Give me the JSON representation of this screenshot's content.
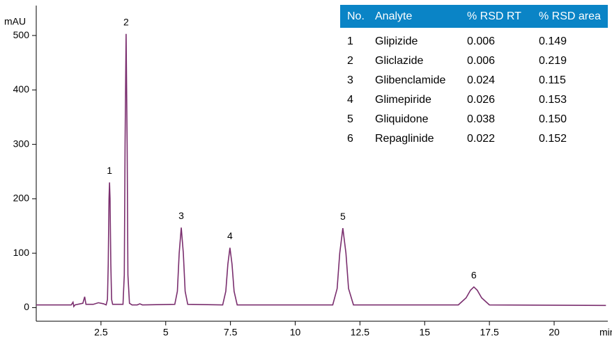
{
  "chart_data": {
    "type": "line",
    "y_label": "mAU",
    "x_label": "min",
    "x": [
      0,
      1.35,
      1.42,
      1.45,
      1.5,
      1.8,
      1.87,
      1.92,
      2.2,
      2.4,
      2.6,
      2.7,
      2.75,
      2.78,
      2.81,
      2.83,
      2.85,
      2.88,
      2.91,
      2.95,
      3.35,
      3.4,
      3.43,
      3.47,
      3.51,
      3.54,
      3.6,
      3.7,
      3.9,
      4.0,
      4.1,
      5.35,
      5.45,
      5.52,
      5.6,
      5.68,
      5.75,
      5.85,
      7.2,
      7.32,
      7.4,
      7.48,
      7.56,
      7.64,
      7.76,
      11.45,
      11.62,
      11.72,
      11.84,
      11.96,
      12.06,
      12.25,
      16.3,
      16.6,
      16.77,
      16.9,
      17.03,
      17.2,
      17.5,
      22
    ],
    "values": [
      5,
      5,
      10,
      2,
      5,
      8,
      20,
      6,
      6,
      9,
      7,
      5,
      15,
      80,
      200,
      230,
      200,
      80,
      15,
      6,
      6,
      60,
      300,
      503,
      300,
      60,
      8,
      5,
      5,
      7,
      5,
      6,
      30,
      100,
      147,
      100,
      30,
      6,
      5,
      30,
      80,
      110,
      80,
      30,
      5,
      5,
      35,
      100,
      146,
      100,
      35,
      5,
      5,
      18,
      32,
      38,
      32,
      18,
      5,
      4
    ],
    "color": "#7a2e6e",
    "xlim": [
      0,
      22
    ],
    "xticks": [
      2.5,
      5,
      7.5,
      10,
      12.5,
      15,
      17.5,
      20
    ],
    "ylim": [
      -25,
      555
    ],
    "yticks": [
      0,
      100,
      200,
      300,
      400,
      500
    ],
    "peak_labels": [
      {
        "text": "1",
        "x": 2.83,
        "y": 230
      },
      {
        "text": "2",
        "x": 3.47,
        "y": 503
      },
      {
        "text": "3",
        "x": 5.6,
        "y": 147
      },
      {
        "text": "4",
        "x": 7.48,
        "y": 110
      },
      {
        "text": "5",
        "x": 11.84,
        "y": 146
      },
      {
        "text": "6",
        "x": 16.9,
        "y": 38
      }
    ]
  },
  "table": {
    "header": [
      "No.",
      "Analyte",
      "% RSD RT",
      "% RSD area"
    ],
    "rows": [
      [
        "1",
        "Glipizide",
        "0.006",
        "0.149"
      ],
      [
        "2",
        "Gliclazide",
        "0.006",
        "0.219"
      ],
      [
        "3",
        "Glibenclamide",
        "0.024",
        "0.115"
      ],
      [
        "4",
        "Glimepiride",
        "0.026",
        "0.153"
      ],
      [
        "5",
        "Gliquidone",
        "0.038",
        "0.150"
      ],
      [
        "6",
        "Repaglinide",
        "0.022",
        "0.152"
      ]
    ]
  }
}
